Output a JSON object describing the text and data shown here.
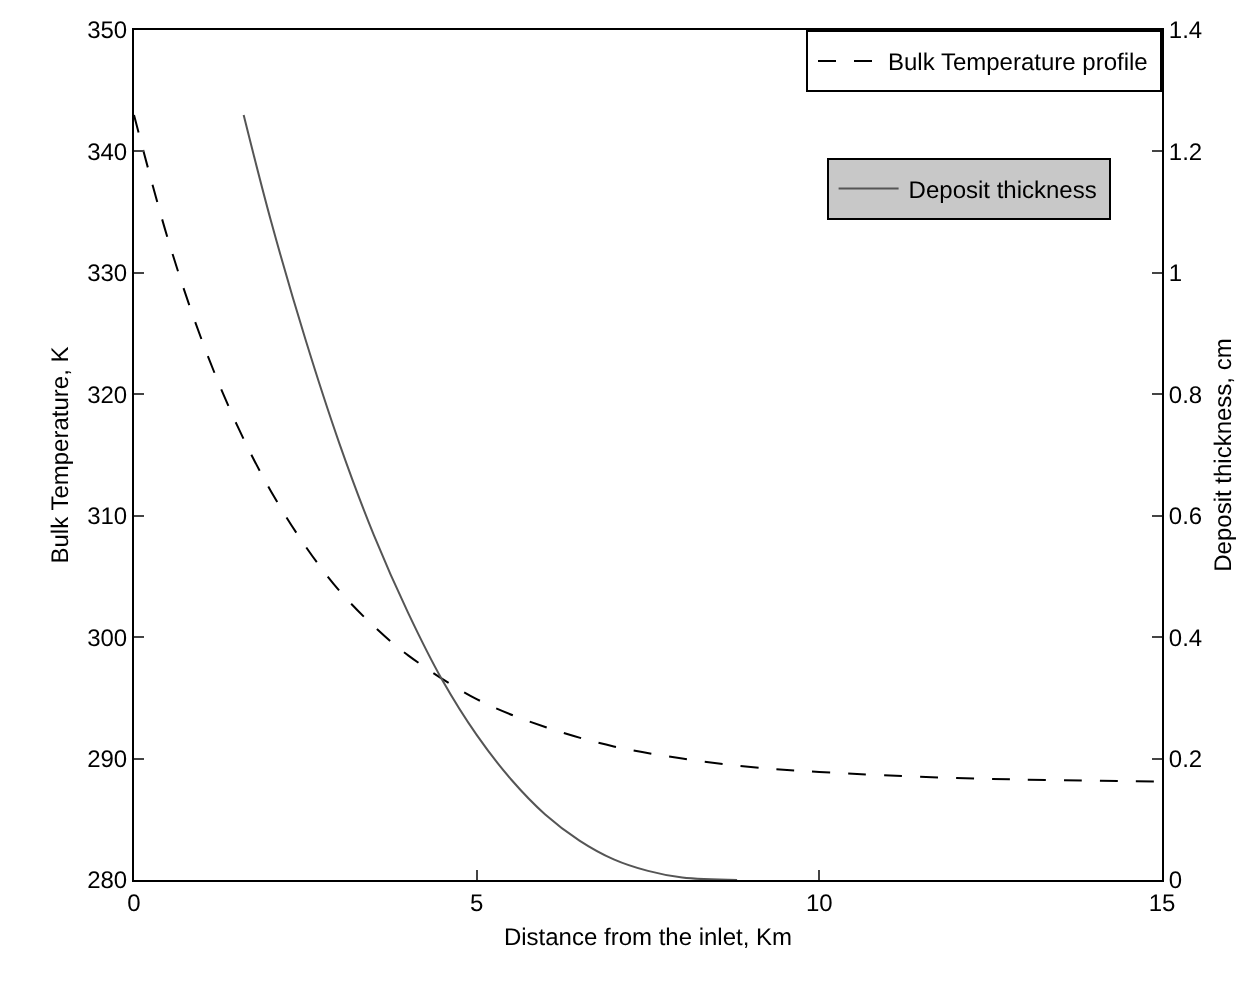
{
  "chart_data": {
    "type": "line",
    "xlabel": "Distance from the inlet, Km",
    "ylabel": "Bulk Temperature, K",
    "y2label": "Deposit thickness, cm",
    "xlim": [
      0,
      15
    ],
    "xticks": [
      0,
      5,
      10,
      15
    ],
    "ylim": [
      280,
      350
    ],
    "yticks": [
      280,
      290,
      300,
      310,
      320,
      330,
      340,
      350
    ],
    "y2lim": [
      0,
      1.4
    ],
    "y2ticks": [
      0,
      0.2,
      0.4,
      0.6,
      0.8,
      1,
      1.2,
      1.4
    ],
    "legend": "top right",
    "grid": false,
    "series": [
      {
        "name": "Bulk Temperature profile",
        "color": "#000000",
        "line_style": "dashed",
        "x": [
          0,
          0.5,
          1,
          1.5,
          2,
          2.5,
          3,
          3.5,
          4,
          5,
          6,
          7,
          8,
          9,
          10,
          12,
          15
        ],
        "values": [
          343,
          332.7,
          324.3,
          317.5,
          312,
          307.5,
          303.8,
          300.9,
          298.5,
          294.9,
          292.6,
          291,
          290,
          289.3,
          288.9,
          288.4,
          288.1
        ]
      },
      {
        "name": "Deposit thickness",
        "color": "#555555",
        "line_style": "solid",
        "axis": "y2",
        "x": [
          1.6,
          2,
          2.5,
          3,
          3.5,
          4,
          4.5,
          5,
          5.5,
          6,
          6.5,
          7,
          7.5,
          8,
          8.8
        ],
        "values": [
          1.26,
          1.085,
          0.891,
          0.718,
          0.568,
          0.44,
          0.329,
          0.239,
          0.166,
          0.108,
          0.065,
          0.034,
          0.015,
          0.004,
          0
        ]
      }
    ]
  }
}
